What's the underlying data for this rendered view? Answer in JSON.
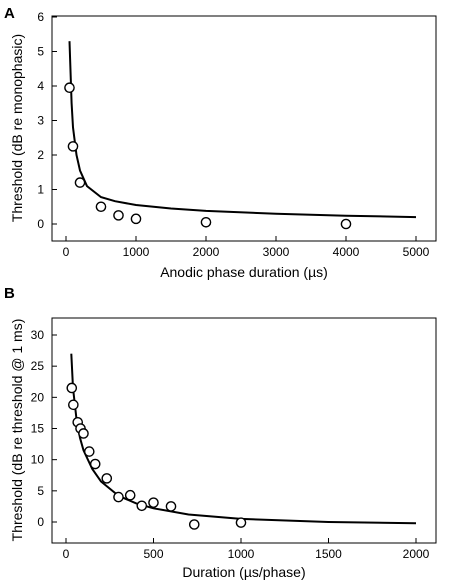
{
  "chart_data": [
    {
      "panel": "A",
      "type": "scatter",
      "xlabel": "Anodic phase duration (µs)",
      "ylabel": "Threshold (dB re monophasic)",
      "xlim": [
        0,
        5000
      ],
      "ylim": [
        0,
        6
      ],
      "xticks": [
        "0",
        "1000",
        "2000",
        "3000",
        "4000",
        "5000"
      ],
      "yticks": [
        "0",
        "1",
        "2",
        "3",
        "4",
        "5",
        "6"
      ],
      "points": {
        "x": [
          50,
          100,
          200,
          500,
          750,
          1000,
          2000,
          4000
        ],
        "y": [
          3.95,
          2.25,
          1.2,
          0.5,
          0.25,
          0.15,
          0.05,
          0.0
        ]
      },
      "fit_line": {
        "x": [
          50,
          80,
          100,
          150,
          200,
          300,
          500,
          700,
          1000,
          1500,
          2000,
          3000,
          4000,
          5000
        ],
        "y": [
          5.3,
          3.5,
          2.8,
          2.0,
          1.55,
          1.1,
          0.78,
          0.66,
          0.55,
          0.45,
          0.38,
          0.3,
          0.24,
          0.2
        ]
      }
    },
    {
      "panel": "B",
      "type": "scatter",
      "xlabel": "Duration (µs/phase)",
      "ylabel": "Threshold (dB re threshold @ 1 ms)",
      "xlim": [
        0,
        2000
      ],
      "ylim": [
        -2.5,
        33
      ],
      "xticks": [
        "0",
        "500",
        "1000",
        "1500",
        "2000"
      ],
      "yticks": [
        "0",
        "5",
        "10",
        "15",
        "20",
        "25",
        "30"
      ],
      "points": {
        "x": [
          33,
          42,
          67,
          83,
          100,
          133,
          167,
          233,
          300,
          367,
          433,
          500,
          600,
          733,
          1000
        ],
        "y": [
          21.5,
          18.8,
          16.0,
          15.0,
          14.2,
          11.3,
          9.3,
          7.0,
          4.0,
          4.3,
          2.6,
          3.1,
          2.5,
          -0.4,
          -0.1
        ]
      },
      "fit_line": {
        "x": [
          30,
          40,
          60,
          80,
          100,
          150,
          200,
          300,
          400,
          500,
          700,
          1000,
          1500,
          2000
        ],
        "y": [
          27.0,
          21.5,
          16.5,
          13.5,
          11.5,
          8.5,
          6.5,
          4.2,
          3.0,
          2.2,
          1.2,
          0.5,
          0.0,
          -0.2
        ]
      }
    }
  ]
}
